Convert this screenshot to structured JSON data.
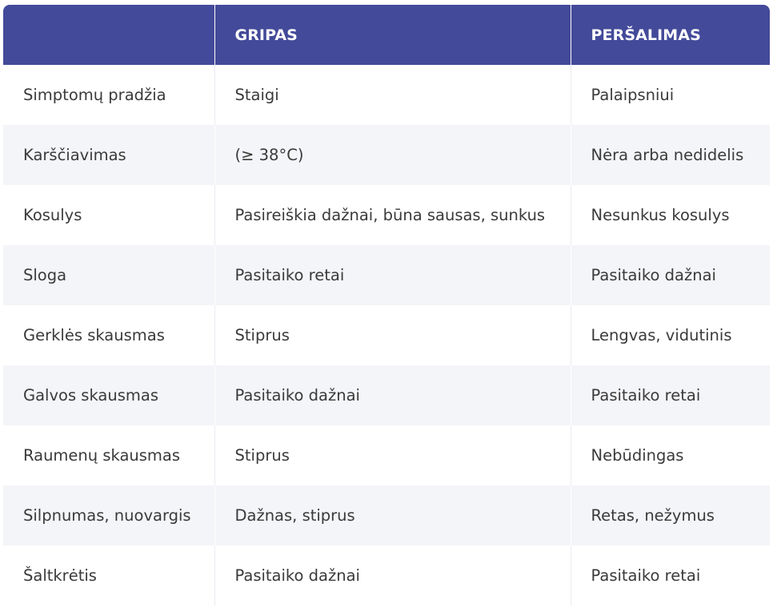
{
  "table": {
    "headers": [
      "",
      "GRIPAS",
      "PERŠALIMAS"
    ],
    "rows": [
      [
        "Simptomų pradžia",
        "Staigi",
        "Palaipsniui"
      ],
      [
        "Karščiavimas",
        "(≥ 38°C)",
        "Nėra arba nedidelis"
      ],
      [
        "Kosulys",
        "Pasireiškia dažnai, būna sausas, sunkus",
        "Nesunkus kosulys"
      ],
      [
        "Sloga",
        "Pasitaiko retai",
        "Pasitaiko dažnai"
      ],
      [
        "Gerklės skausmas",
        "Stiprus",
        "Lengvas, vidutinis"
      ],
      [
        "Galvos skausmas",
        "Pasitaiko dažnai",
        "Pasitaiko retai"
      ],
      [
        "Raumenų skausmas",
        "Stiprus",
        "Nebūdingas"
      ],
      [
        "Silpnumas, nuovargis",
        "Dažnas, stiprus",
        "Retas, nežymus"
      ],
      [
        "Šaltkrėtis",
        "Pasitaiko dažnai",
        "Pasitaiko retai"
      ]
    ]
  },
  "colors": {
    "header_bg": "#434a99",
    "header_text": "#ffffff",
    "row_alt_bg": "#f4f5f8",
    "body_text": "#3a3a3a"
  }
}
